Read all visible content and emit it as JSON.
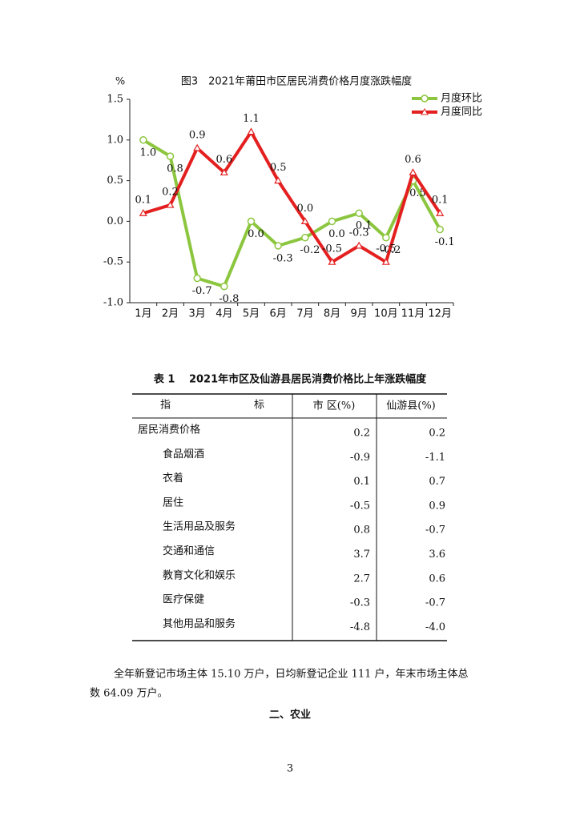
{
  "chart_data": {
    "type": "line",
    "title": "图3　2021年莆田市区居民消费价格月度涨跌幅度",
    "y_unit": "%",
    "categories": [
      "1月",
      "2月",
      "3月",
      "4月",
      "5月",
      "6月",
      "7月",
      "8月",
      "9月",
      "10月",
      "11月",
      "12月"
    ],
    "series": [
      {
        "name": "月度环比",
        "color": "#8cc63f",
        "marker": "circle",
        "values": [
          1.0,
          0.8,
          -0.7,
          -0.8,
          0.0,
          -0.3,
          -0.2,
          0.0,
          0.1,
          -0.2,
          0.5,
          -0.1
        ],
        "value_labels": [
          "1.0",
          "0.8",
          "-0.7",
          "-0.8",
          "0.0",
          "-0.3",
          "-0.2",
          "0.0",
          "0.1",
          "-0.2",
          "0.5",
          "-0.1"
        ]
      },
      {
        "name": "月度同比",
        "color": "#e41f1f",
        "marker": "triangle",
        "values": [
          0.1,
          0.2,
          0.9,
          0.6,
          1.1,
          0.5,
          0.0,
          -0.5,
          -0.3,
          -0.5,
          0.6,
          0.1
        ],
        "value_labels": [
          "0.1",
          "0.2",
          "0.9",
          "0.6",
          "1.1",
          "0.5",
          "0.0",
          "-0.5",
          "-0.3",
          "-0.5",
          "0.6",
          "0.1"
        ]
      }
    ],
    "ylim": [
      -1,
      1.5
    ],
    "yticks": [
      1.5,
      {
        "value": 1,
        "label": "1.0"
      },
      0.5,
      {
        "value": 0,
        "label": "0.0"
      },
      -0.5,
      {
        "value": -1,
        "label": "-1.0"
      }
    ],
    "grid": false,
    "legend": "top-right"
  },
  "table": {
    "title": "表 1　 2021年市区及仙游县居民消费价格比上年涨跌幅度",
    "header": [
      "指　　　　　　　　标",
      "市 区(%)",
      "仙游县(%)"
    ],
    "rows": [
      [
        "居民消费价格",
        "0.2",
        "0.2"
      ],
      [
        "食品烟酒",
        "-0.9",
        "-1.1"
      ],
      [
        "衣着",
        "0.1",
        "0.7"
      ],
      [
        "居住",
        "-0.5",
        "0.9"
      ],
      [
        "生活用品及服务",
        "0.8",
        "-0.7"
      ],
      [
        "交通和通信",
        "3.7",
        "3.6"
      ],
      [
        "教育文化和娱乐",
        "2.7",
        "0.6"
      ],
      [
        "医疗保健",
        "-0.3",
        "-0.7"
      ],
      [
        "其他用品和服务",
        "-4.8",
        "-4.0"
      ]
    ]
  },
  "paragraph": [
    "全年新登记市场主体 15.10 万户，日均新登记企业 111 户，年末市场主体总",
    "数 64.09 万户。"
  ],
  "heading": "二、农业",
  "page_number": "3"
}
